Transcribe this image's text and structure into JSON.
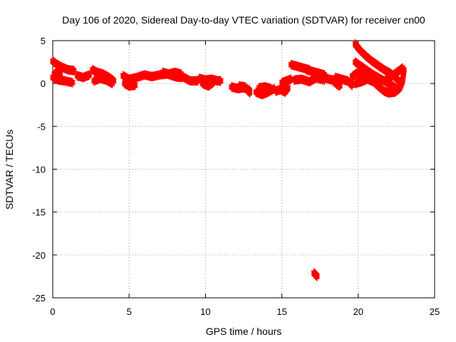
{
  "chart_data": {
    "type": "scatter",
    "title": "Day 106 of 2020, Sidereal Day-to-day VTEC variation (SDTVAR) for receiver cn00",
    "xlabel": "GPS time / hours",
    "ylabel": "SDTVAR / TECUs",
    "xlim": [
      0,
      25
    ],
    "ylim": [
      -25,
      5
    ],
    "xticks": [
      0,
      5,
      10,
      15,
      20,
      25
    ],
    "yticks": [
      5,
      0,
      -5,
      -10,
      -15,
      -20,
      -25
    ],
    "grid": true,
    "marker": "+",
    "series": [
      {
        "name": "SDTVAR",
        "color": "#ff0000",
        "segments": [
          [
            [
              0.0,
              2.6
            ],
            [
              0.3,
              2.2
            ],
            [
              0.6,
              1.9
            ],
            [
              1.0,
              1.6
            ],
            [
              1.4,
              1.5
            ]
          ],
          [
            [
              0.0,
              0.7
            ],
            [
              0.4,
              0.4
            ],
            [
              0.8,
              0.3
            ],
            [
              1.3,
              0.1
            ]
          ],
          [
            [
              0.1,
              1.1
            ],
            [
              0.3,
              1.3
            ],
            [
              0.5,
              1.2
            ]
          ],
          [
            [
              1.6,
              0.9
            ],
            [
              2.0,
              0.7
            ],
            [
              2.4,
              1.0
            ]
          ],
          [
            [
              2.6,
              1.6
            ],
            [
              2.9,
              1.3
            ],
            [
              3.3,
              1.1
            ],
            [
              3.7,
              0.7
            ],
            [
              4.0,
              0.3
            ]
          ],
          [
            [
              2.7,
              0.3
            ],
            [
              3.1,
              0.6
            ],
            [
              3.5,
              0.4
            ],
            [
              3.9,
              0.0
            ]
          ],
          [
            [
              4.6,
              0.9
            ],
            [
              5.0,
              0.5
            ],
            [
              5.5,
              0.7
            ],
            [
              6.0,
              1.0
            ],
            [
              6.5,
              0.8
            ]
          ],
          [
            [
              4.7,
              0.0
            ],
            [
              5.0,
              -0.3
            ],
            [
              5.4,
              -0.2
            ]
          ],
          [
            [
              6.5,
              0.8
            ],
            [
              7.0,
              1.0
            ],
            [
              7.5,
              1.1
            ],
            [
              8.0,
              0.8
            ],
            [
              8.4,
              0.7
            ]
          ],
          [
            [
              7.2,
              1.3
            ],
            [
              7.6,
              1.1
            ],
            [
              8.0,
              1.3
            ],
            [
              8.4,
              1.1
            ]
          ],
          [
            [
              8.2,
              0.9
            ],
            [
              8.6,
              0.7
            ],
            [
              9.0,
              0.3
            ],
            [
              9.5,
              0.3
            ]
          ],
          [
            [
              9.6,
              0.6
            ],
            [
              10.0,
              0.4
            ],
            [
              10.4,
              0.5
            ],
            [
              10.8,
              0.3
            ],
            [
              11.0,
              0.3
            ]
          ],
          [
            [
              9.8,
              0.0
            ],
            [
              10.2,
              -0.3
            ],
            [
              10.5,
              0.1
            ]
          ],
          [
            [
              11.7,
              -0.4
            ],
            [
              12.1,
              -0.6
            ],
            [
              12.5,
              -0.5
            ],
            [
              12.9,
              -0.8
            ]
          ],
          [
            [
              12.2,
              -0.3
            ],
            [
              12.6,
              -0.4
            ],
            [
              12.9,
              -1.1
            ]
          ],
          [
            [
              13.3,
              -1.0
            ],
            [
              13.7,
              -1.3
            ],
            [
              14.1,
              -1.0
            ],
            [
              14.5,
              -0.6
            ]
          ],
          [
            [
              13.5,
              -0.5
            ],
            [
              13.9,
              -0.4
            ],
            [
              14.3,
              -0.6
            ]
          ],
          [
            [
              14.6,
              -0.9
            ],
            [
              14.9,
              -0.7
            ],
            [
              15.2,
              -1.0
            ],
            [
              15.4,
              -0.5
            ]
          ],
          [
            [
              15.0,
              0.1
            ],
            [
              15.3,
              0.3
            ],
            [
              15.6,
              0.5
            ]
          ],
          [
            [
              15.6,
              2.2
            ],
            [
              16.0,
              2.0
            ],
            [
              16.4,
              1.8
            ],
            [
              16.8,
              1.6
            ]
          ],
          [
            [
              16.6,
              1.6
            ],
            [
              17.0,
              1.4
            ],
            [
              17.4,
              1.2
            ],
            [
              17.8,
              1.0
            ]
          ],
          [
            [
              15.8,
              0.4
            ],
            [
              16.3,
              0.5
            ],
            [
              16.8,
              0.2
            ],
            [
              17.2,
              0.6
            ],
            [
              17.8,
              0.4
            ]
          ],
          [
            [
              17.5,
              1.0
            ],
            [
              17.9,
              0.6
            ],
            [
              18.3,
              0.4
            ],
            [
              18.6,
              -0.1
            ],
            [
              18.8,
              -0.3
            ]
          ],
          [
            [
              18.5,
              0.7
            ],
            [
              18.9,
              0.5
            ],
            [
              19.3,
              0.3
            ],
            [
              19.6,
              -0.2
            ]
          ],
          [
            [
              19.6,
              0.8
            ],
            [
              19.9,
              1.2
            ],
            [
              20.3,
              0.9
            ],
            [
              20.7,
              0.6
            ]
          ],
          [
            [
              19.8,
              4.6
            ],
            [
              20.1,
              3.9
            ],
            [
              20.5,
              3.2
            ],
            [
              20.9,
              2.6
            ],
            [
              21.3,
              2.1
            ],
            [
              21.7,
              1.6
            ],
            [
              22.1,
              1.2
            ],
            [
              22.5,
              0.6
            ],
            [
              22.8,
              0.0
            ]
          ],
          [
            [
              19.8,
              2.5
            ],
            [
              20.2,
              2.0
            ],
            [
              20.6,
              1.5
            ],
            [
              21.0,
              1.0
            ],
            [
              21.4,
              0.6
            ],
            [
              21.8,
              0.2
            ],
            [
              22.2,
              -0.2
            ],
            [
              22.5,
              -0.6
            ]
          ],
          [
            [
              19.8,
              0.0
            ],
            [
              20.2,
              0.2
            ],
            [
              20.6,
              0.5
            ],
            [
              21.0,
              0.2
            ],
            [
              21.3,
              -0.3
            ],
            [
              21.7,
              -0.9
            ],
            [
              22.0,
              -1.1
            ],
            [
              22.4,
              -1.0
            ],
            [
              22.7,
              -0.6
            ],
            [
              22.9,
              0.3
            ],
            [
              23.0,
              1.6
            ]
          ],
          [
            [
              21.9,
              0.6
            ],
            [
              22.3,
              1.0
            ],
            [
              22.6,
              1.4
            ],
            [
              22.9,
              1.8
            ]
          ],
          [
            [
              17.1,
              -22.1
            ],
            [
              17.2,
              -22.3
            ],
            [
              17.3,
              -22.5
            ]
          ]
        ]
      }
    ]
  }
}
